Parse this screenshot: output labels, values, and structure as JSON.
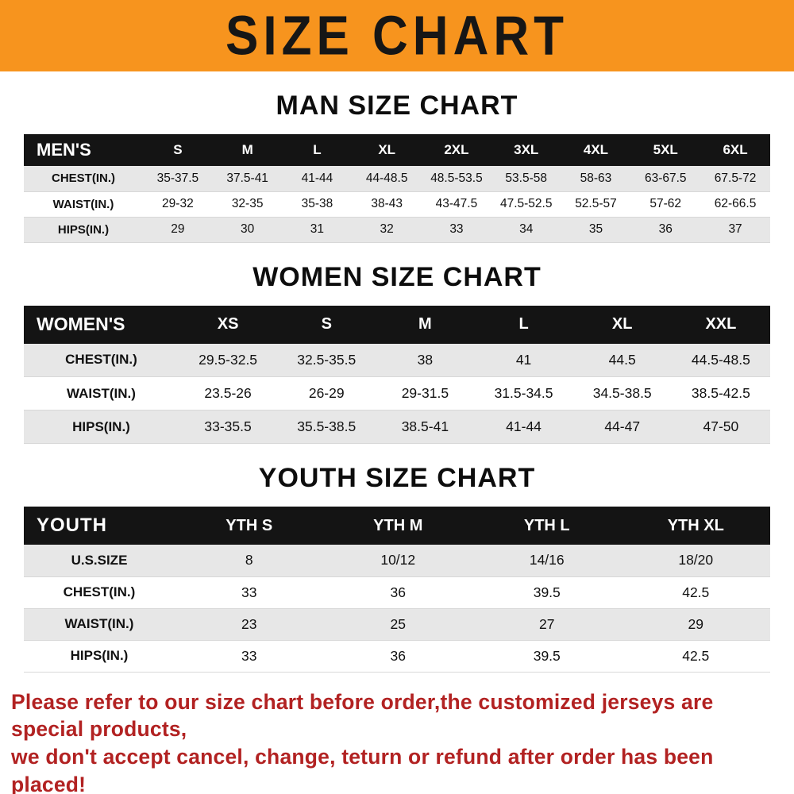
{
  "banner": {
    "title": "SIZE CHART"
  },
  "chart_data": [
    {
      "type": "table",
      "title": "MAN SIZE CHART",
      "header": [
        "MEN'S",
        "S",
        "M",
        "L",
        "XL",
        "2XL",
        "3XL",
        "4XL",
        "5XL",
        "6XL"
      ],
      "rows": [
        [
          "CHEST(IN.)",
          "35-37.5",
          "37.5-41",
          "41-44",
          "44-48.5",
          "48.5-53.5",
          "53.5-58",
          "58-63",
          "63-67.5",
          "67.5-72"
        ],
        [
          "WAIST(IN.)",
          "29-32",
          "32-35",
          "35-38",
          "38-43",
          "43-47.5",
          "47.5-52.5",
          "52.5-57",
          "57-62",
          "62-66.5"
        ],
        [
          "HIPS(IN.)",
          "29",
          "30",
          "31",
          "32",
          "33",
          "34",
          "35",
          "36",
          "37"
        ]
      ]
    },
    {
      "type": "table",
      "title": "WOMEN SIZE CHART",
      "header": [
        "WOMEN'S",
        "XS",
        "S",
        "M",
        "L",
        "XL",
        "XXL"
      ],
      "rows": [
        [
          "CHEST(IN.)",
          "29.5-32.5",
          "32.5-35.5",
          "38",
          "41",
          "44.5",
          "44.5-48.5"
        ],
        [
          "WAIST(IN.)",
          "23.5-26",
          "26-29",
          "29-31.5",
          "31.5-34.5",
          "34.5-38.5",
          "38.5-42.5"
        ],
        [
          "HIPS(IN.)",
          "33-35.5",
          "35.5-38.5",
          "38.5-41",
          "41-44",
          "44-47",
          "47-50"
        ]
      ]
    },
    {
      "type": "table",
      "title": "YOUTH SIZE CHART",
      "header": [
        "YOUTH",
        "YTH S",
        "YTH M",
        "YTH L",
        "YTH XL"
      ],
      "rows": [
        [
          "U.S.SIZE",
          "8",
          "10/12",
          "14/16",
          "18/20"
        ],
        [
          "CHEST(IN.)",
          "33",
          "36",
          "39.5",
          "42.5"
        ],
        [
          "WAIST(IN.)",
          "23",
          "25",
          "27",
          "29"
        ],
        [
          "HIPS(IN.)",
          "33",
          "36",
          "39.5",
          "42.5"
        ]
      ]
    }
  ],
  "notice": {
    "line1": "Please refer to our size chart before order,the customized jerseys are special products,",
    "line2": "we don't accept cancel, change, teturn or refund after order has been placed!"
  },
  "colors": {
    "banner-bg": "#f7941e",
    "header-bg": "#141414",
    "stripe": "#e7e7e7",
    "notice": "#b22222"
  }
}
